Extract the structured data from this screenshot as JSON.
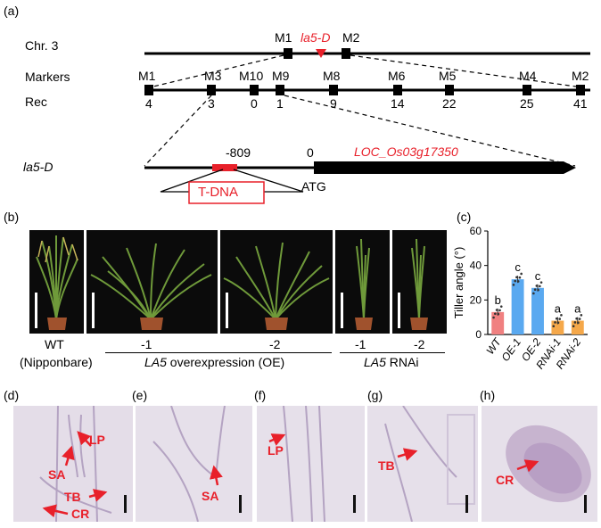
{
  "panels": {
    "a": "(a)",
    "b": "(b)",
    "c": "(c)",
    "d": "(d)",
    "e": "(e)",
    "f": "(f)",
    "g": "(g)",
    "h": "(h)"
  },
  "map": {
    "chr_label": "Chr. 3",
    "markers_label": "Markers",
    "rec_label": "Rec",
    "top_markers": [
      "M1",
      "la5-D",
      "M2"
    ],
    "markers": [
      "M1",
      "M3",
      "M10",
      "M9",
      "M8",
      "M6",
      "M5",
      "M4",
      "M2"
    ],
    "rec_values": [
      "4",
      "3",
      "0",
      "1",
      "9",
      "14",
      "22",
      "25",
      "41"
    ],
    "gene_label": "la5-D",
    "pos_minus": "-809",
    "pos_zero": "0",
    "locus": "LOC_Os03g17350",
    "tdna": "T-DNA",
    "atg": "ATG"
  },
  "photos": {
    "wt": "WT",
    "wt_sub": "(Nipponbare)",
    "oe1": "-1",
    "oe2": "-2",
    "oe_caption_gene": "LA5",
    "oe_caption_rest": " overexpression (OE)",
    "rnai1": "-1",
    "rnai2": "-2",
    "rnai_caption_gene": "LA5",
    "rnai_caption_rest": " RNAi"
  },
  "chart_data": {
    "type": "bar",
    "categories": [
      "WT",
      "OE-1",
      "OE-2",
      "RNAi-1",
      "RNAi-2"
    ],
    "values": [
      13,
      32,
      27,
      8,
      8
    ],
    "letters": [
      "b",
      "c",
      "c",
      "a",
      "a"
    ],
    "ylabel": "Tiller angle (°)",
    "ylim": [
      0,
      60
    ],
    "yticks": [
      "0",
      "20",
      "40",
      "60"
    ],
    "colors": [
      "#f08080",
      "#5aa9f0",
      "#5aa9f0",
      "#f5a84a",
      "#f5a84a"
    ]
  },
  "micro": {
    "d_labels": [
      "LP",
      "SA",
      "TB",
      "CR"
    ],
    "e_labels": [
      "SA"
    ],
    "f_labels": [
      "LP"
    ],
    "g_labels": [
      "TB"
    ],
    "h_labels": [
      "CR"
    ]
  }
}
